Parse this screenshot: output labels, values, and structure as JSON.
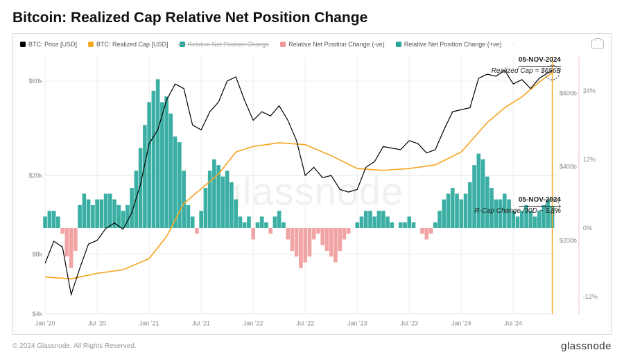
{
  "title": "Bitcoin: Realized Cap Relative Net Position Change",
  "copyright": "© 2024 Glassnode. All Rights Reserved.",
  "brand": "glassnode",
  "watermark": "glassnode",
  "legend": {
    "price": {
      "label": "BTC: Price [USD]",
      "color": "#000000"
    },
    "rcap": {
      "label": "BTC: Realized Cap [USD]",
      "color": "#f5a623"
    },
    "strike": {
      "label": "Relative Net Position Change",
      "color": "#26a69a"
    },
    "neg": {
      "label": "Relative Net Position Change (-ve)",
      "color": "#ef9a9a"
    },
    "pos": {
      "label": "Relative Net Position Change (+ve)",
      "color": "#26a69a"
    }
  },
  "annot_top": {
    "date": "05-NOV-2024",
    "sub": "Realized Cap = $656B"
  },
  "annot_bot": {
    "date": "05-NOV-2024",
    "sub": "R-Cap Change /30D ~ 3.8%"
  },
  "chart": {
    "x_labels": [
      "Jan '20",
      "Jul '20",
      "Jan '21",
      "Jul '21",
      "Jan '22",
      "Jul '22",
      "Jan '23",
      "Jul '23",
      "Jan '24",
      "Jul '24"
    ],
    "y_left_log": {
      "min_log": 3.602,
      "max_log": 4.903,
      "ticks": [
        4000,
        8000,
        20000,
        60000
      ],
      "labels": [
        "$4k",
        "$8k",
        "$20k",
        "$60k"
      ]
    },
    "y_right1": {
      "ticks": [
        200,
        400,
        600
      ],
      "labels": [
        "$200b",
        "$400b",
        "$600b"
      ],
      "min": 0,
      "max": 700
    },
    "y_right2": {
      "ticks": [
        -12,
        0,
        12,
        24
      ],
      "labels": [
        "-12%",
        "0%",
        "12%",
        "24%"
      ],
      "min": -15,
      "max": 30
    },
    "marker_x": 58.5,
    "colors": {
      "grid": "#ececec",
      "price": "#000000",
      "rcap": "#f5a623",
      "pos": "#26a69a",
      "neg": "#ef9a9a",
      "marker": "#f5a623",
      "right_edge": "#ef9a9a"
    },
    "price": [
      [
        0,
        7200
      ],
      [
        1,
        9300
      ],
      [
        2,
        8700
      ],
      [
        3,
        5000
      ],
      [
        4,
        6800
      ],
      [
        5,
        9000
      ],
      [
        6,
        9400
      ],
      [
        7,
        10800
      ],
      [
        8,
        11500
      ],
      [
        9,
        10700
      ],
      [
        10,
        13000
      ],
      [
        11,
        18000
      ],
      [
        12,
        29000
      ],
      [
        13,
        34000
      ],
      [
        14,
        48000
      ],
      [
        15,
        58000
      ],
      [
        16,
        55000
      ],
      [
        17,
        36000
      ],
      [
        18,
        34000
      ],
      [
        19,
        42000
      ],
      [
        20,
        47000
      ],
      [
        21,
        60000
      ],
      [
        22,
        63000
      ],
      [
        23,
        48000
      ],
      [
        24,
        38000
      ],
      [
        25,
        42000
      ],
      [
        26,
        40000
      ],
      [
        27,
        45000
      ],
      [
        28,
        38000
      ],
      [
        29,
        30000
      ],
      [
        30,
        20000
      ],
      [
        31,
        22000
      ],
      [
        32,
        19500
      ],
      [
        33,
        20000
      ],
      [
        34,
        17000
      ],
      [
        35,
        16500
      ],
      [
        36,
        17000
      ],
      [
        37,
        22000
      ],
      [
        38,
        23500
      ],
      [
        39,
        28000
      ],
      [
        40,
        27500
      ],
      [
        41,
        27000
      ],
      [
        42,
        30000
      ],
      [
        43,
        29000
      ],
      [
        44,
        26000
      ],
      [
        45,
        27000
      ],
      [
        46,
        34000
      ],
      [
        47,
        42000
      ],
      [
        48,
        43000
      ],
      [
        49,
        44000
      ],
      [
        50,
        62000
      ],
      [
        51,
        65000
      ],
      [
        52,
        63500
      ],
      [
        53,
        68000
      ],
      [
        54,
        58000
      ],
      [
        55,
        61000
      ],
      [
        56,
        55000
      ],
      [
        57,
        62000
      ],
      [
        58,
        66000
      ],
      [
        58.5,
        68000
      ]
    ],
    "rcap": [
      [
        0,
        100
      ],
      [
        3,
        95
      ],
      [
        6,
        110
      ],
      [
        9,
        120
      ],
      [
        12,
        150
      ],
      [
        14,
        210
      ],
      [
        16,
        300
      ],
      [
        18,
        340
      ],
      [
        20,
        380
      ],
      [
        22,
        440
      ],
      [
        24,
        455
      ],
      [
        27,
        465
      ],
      [
        30,
        460
      ],
      [
        33,
        430
      ],
      [
        36,
        395
      ],
      [
        39,
        390
      ],
      [
        42,
        395
      ],
      [
        45,
        405
      ],
      [
        48,
        440
      ],
      [
        51,
        520
      ],
      [
        53,
        560
      ],
      [
        55,
        590
      ],
      [
        57,
        630
      ],
      [
        58.5,
        656
      ]
    ],
    "net_change": [
      [
        0,
        2
      ],
      [
        0.5,
        3
      ],
      [
        1,
        3
      ],
      [
        1.5,
        2
      ],
      [
        2,
        -1
      ],
      [
        2.5,
        -5
      ],
      [
        3,
        -7
      ],
      [
        3.5,
        -4
      ],
      [
        4,
        4
      ],
      [
        4.5,
        6
      ],
      [
        5,
        5
      ],
      [
        5.5,
        4
      ],
      [
        6,
        5
      ],
      [
        6.5,
        5
      ],
      [
        7,
        6
      ],
      [
        7.5,
        6
      ],
      [
        8,
        5
      ],
      [
        8.5,
        4
      ],
      [
        9,
        3
      ],
      [
        9.5,
        4
      ],
      [
        10,
        7
      ],
      [
        10.5,
        10
      ],
      [
        11,
        14
      ],
      [
        11.5,
        18
      ],
      [
        12,
        22
      ],
      [
        12.5,
        24
      ],
      [
        13,
        26
      ],
      [
        13.5,
        22
      ],
      [
        14,
        23
      ],
      [
        14.5,
        20
      ],
      [
        15,
        16
      ],
      [
        15.5,
        15
      ],
      [
        16,
        10
      ],
      [
        16.5,
        4
      ],
      [
        17,
        2
      ],
      [
        17.5,
        -1
      ],
      [
        18,
        3
      ],
      [
        18.5,
        7
      ],
      [
        19,
        10
      ],
      [
        19.5,
        12
      ],
      [
        20,
        11
      ],
      [
        20.5,
        9
      ],
      [
        21,
        10
      ],
      [
        21.5,
        8
      ],
      [
        22,
        5
      ],
      [
        22.5,
        2
      ],
      [
        23,
        1
      ],
      [
        23.5,
        2
      ],
      [
        24,
        -2
      ],
      [
        24.5,
        1
      ],
      [
        25,
        2
      ],
      [
        25.5,
        1
      ],
      [
        26,
        -1
      ],
      [
        26.5,
        2
      ],
      [
        27,
        3
      ],
      [
        27.5,
        1
      ],
      [
        28,
        -2
      ],
      [
        28.5,
        -4
      ],
      [
        29,
        -5
      ],
      [
        29.5,
        -7
      ],
      [
        30,
        -6
      ],
      [
        30.5,
        -5
      ],
      [
        31,
        -2
      ],
      [
        31.5,
        -1
      ],
      [
        32,
        -3
      ],
      [
        32.5,
        -4
      ],
      [
        33,
        -5
      ],
      [
        33.5,
        -6
      ],
      [
        34,
        -4
      ],
      [
        34.5,
        -2
      ],
      [
        35,
        -1
      ],
      [
        35.5,
        0
      ],
      [
        36,
        1
      ],
      [
        36.5,
        2
      ],
      [
        37,
        3
      ],
      [
        37.5,
        3
      ],
      [
        38,
        2
      ],
      [
        38.5,
        3
      ],
      [
        39,
        3
      ],
      [
        39.5,
        2
      ],
      [
        40,
        1
      ],
      [
        40.5,
        0
      ],
      [
        41,
        1
      ],
      [
        41.5,
        1
      ],
      [
        42,
        2
      ],
      [
        42.5,
        1
      ],
      [
        43,
        0
      ],
      [
        43.5,
        -1
      ],
      [
        44,
        -2
      ],
      [
        44.5,
        -1
      ],
      [
        45,
        1
      ],
      [
        45.5,
        3
      ],
      [
        46,
        5
      ],
      [
        46.5,
        6
      ],
      [
        47,
        7
      ],
      [
        47.5,
        6
      ],
      [
        48,
        5
      ],
      [
        48.5,
        6
      ],
      [
        49,
        8
      ],
      [
        49.5,
        11
      ],
      [
        50,
        13
      ],
      [
        50.5,
        12
      ],
      [
        51,
        9
      ],
      [
        51.5,
        7
      ],
      [
        52,
        5
      ],
      [
        52.5,
        5
      ],
      [
        53,
        6
      ],
      [
        53.5,
        5
      ],
      [
        54,
        3
      ],
      [
        54.5,
        2
      ],
      [
        55,
        3
      ],
      [
        55.5,
        4
      ],
      [
        56,
        3
      ],
      [
        56.5,
        2
      ],
      [
        57,
        3
      ],
      [
        57.5,
        4
      ],
      [
        58,
        5
      ],
      [
        58.5,
        3.8
      ]
    ]
  }
}
